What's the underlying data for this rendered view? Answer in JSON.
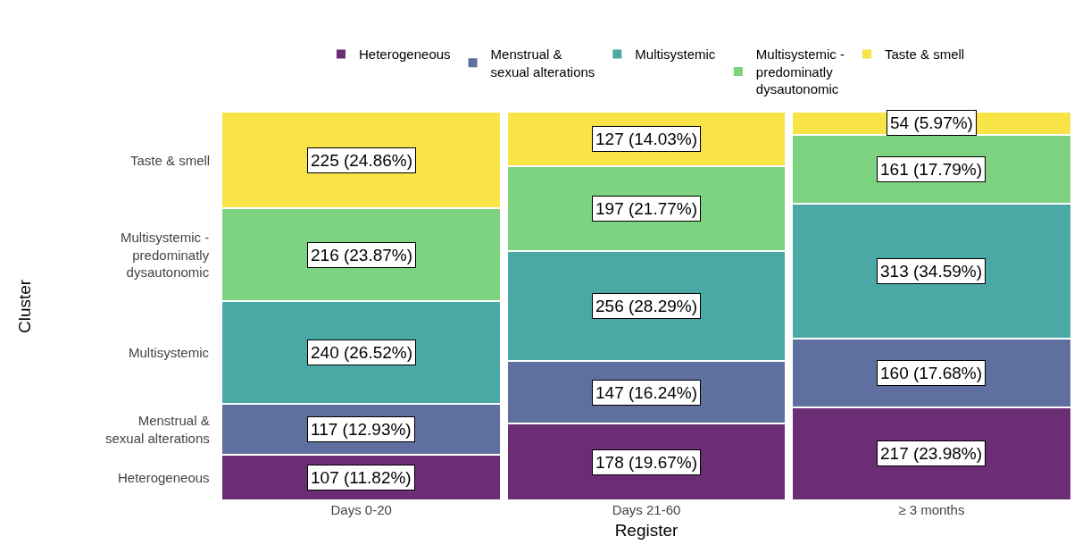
{
  "chart_data": {
    "type": "bar",
    "stacked": true,
    "xlabel": "Register",
    "categories": [
      "Days 0-20",
      "Days 21-60",
      "≥ 3 months"
    ],
    "series": [
      {
        "name": "Heterogeneous",
        "color": "#6b2d74",
        "values": [
          11.82,
          19.67,
          23.98
        ],
        "value_labels": [
          "107 (11.82%)",
          "178 (19.67%)",
          "217 (23.98%)"
        ]
      },
      {
        "name": "Menstrual &\nsexual alterations",
        "color": "#5f6f9f",
        "values": [
          12.93,
          16.24,
          17.68
        ],
        "value_labels": [
          "117 (12.93%)",
          "147 (16.24%)",
          "160 (17.68%)"
        ]
      },
      {
        "name": "Multisystemic",
        "color": "#4aa8a5",
        "values": [
          26.52,
          28.29,
          34.59
        ],
        "value_labels": [
          "240 (26.52%)",
          "256 (28.29%)",
          "313 (34.59%)"
        ]
      },
      {
        "name": "Multisystemic -\npredominatly\ndysautonomic",
        "color": "#7dd37f",
        "values": [
          23.87,
          21.77,
          17.79
        ],
        "value_labels": [
          "216 (23.87%)",
          "197 (21.77%)",
          "161 (17.79%)"
        ]
      },
      {
        "name": "Taste & smell",
        "color": "#f8e447",
        "values": [
          24.86,
          14.03,
          5.97
        ],
        "value_labels": [
          "225 (24.86%)",
          "127 (14.03%)",
          "54 (5.97%)"
        ]
      }
    ],
    "ylim": [
      0,
      100
    ],
    "annotations": [
      "Heterogeneous",
      "Menstrual &\nsexual alterations",
      "Multisystemic",
      "Multisystemic -\npredominatly\ndysautonomic",
      "Taste & smell",
      "Cluster"
    ],
    "legend": "top"
  }
}
